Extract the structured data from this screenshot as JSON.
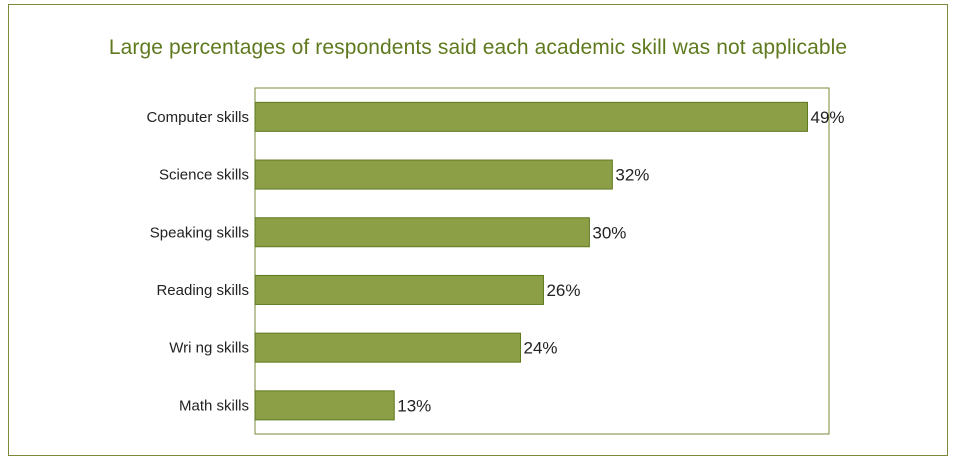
{
  "chart_data": {
    "type": "bar",
    "orientation": "horizontal",
    "title": "Large percentages of respondents said each academic skill was not applicable",
    "categories": [
      "Computer skills",
      "Science skills",
      "Speaking skills",
      "Reading skills",
      "Wri  ng skills",
      "Math skills"
    ],
    "values": [
      49,
      32,
      30,
      26,
      24,
      13
    ],
    "value_labels": [
      "49%",
      "32%",
      "30%",
      "26%",
      "24%",
      "13%"
    ],
    "xlim": [
      0,
      50
    ],
    "grid": false,
    "legend": "none",
    "bar_color": "#8c9e46",
    "bar_edge_color": "#5f7a1e",
    "title_color": "#5f7a1e"
  }
}
